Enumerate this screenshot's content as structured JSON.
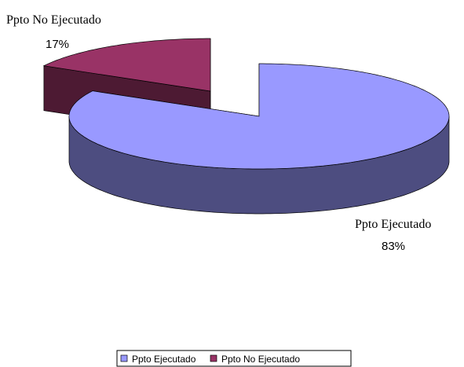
{
  "chart_data": {
    "type": "pie3d",
    "categories": [
      "Ppto Ejecutado",
      "Ppto No Ejecutado"
    ],
    "values": [
      83,
      17
    ],
    "value_labels": [
      "83%",
      "17%"
    ],
    "colors": [
      "#9999ff",
      "#993366"
    ],
    "legend": "bottom"
  }
}
